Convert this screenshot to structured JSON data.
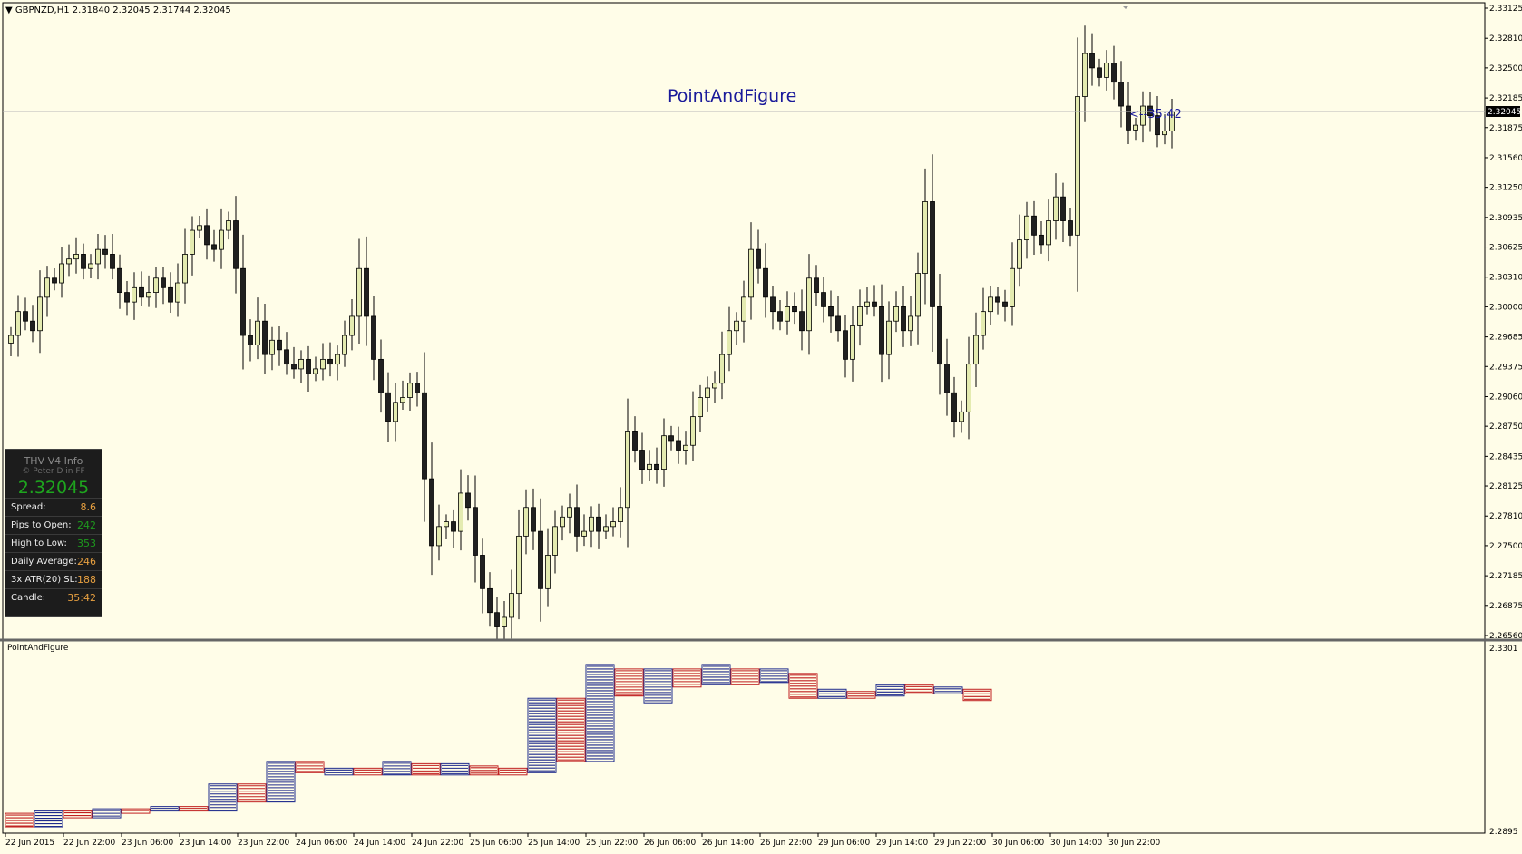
{
  "header": {
    "symbol_info": "▼ GBPNZD,H1  2.31840 2.32045 2.31744 2.32045"
  },
  "main": {
    "indicator_label": "PointAndFigure",
    "timer_label": "<--35:42",
    "current_price": "2.32045"
  },
  "info_panel": {
    "title": "THV  V4  Info",
    "subtitle": "© Peter D in FF",
    "price": "2.32045",
    "rows": [
      {
        "label": "Spread:",
        "value": "8.6",
        "color": "#e8a040"
      },
      {
        "label": "Pips to Open:",
        "value": "242",
        "color": "#1e9a1e"
      },
      {
        "label": "High to Low:",
        "value": "353",
        "color": "#1e9a1e"
      },
      {
        "label": "Daily Average:",
        "value": "246",
        "color": "#e8a040"
      },
      {
        "label": "3x ATR(20) SL:",
        "value": "188",
        "color": "#e8a040"
      },
      {
        "label": "Candle:",
        "value": "35:42",
        "color": "#e8a040"
      }
    ]
  },
  "subwindow": {
    "title": "PointAndFigure"
  },
  "colors": {
    "bull_candle": "#E4EBB0",
    "bear_candle": "#202020",
    "pf_x_color": "#1E2A8C",
    "pf_o_color": "#C02020",
    "background": "#FFFDE8"
  },
  "chart_data": [
    {
      "type": "candlestick",
      "title": "GBPNZD,H1",
      "y_axis_ticks": [
        "2.33125",
        "2.32810",
        "2.32500",
        "2.32185",
        "2.31875",
        "2.31560",
        "2.31250",
        "2.30935",
        "2.30625",
        "2.30310",
        "2.30000",
        "2.29685",
        "2.29375",
        "2.29060",
        "2.28750",
        "2.28435",
        "2.28125",
        "2.27810",
        "2.27500",
        "2.27185",
        "2.26875",
        "2.26560"
      ],
      "ylim": [
        2.2656,
        2.33125
      ],
      "x_axis_ticks": [
        "22 Jun 2015",
        "22 Jun 22:00",
        "23 Jun 06:00",
        "23 Jun 14:00",
        "23 Jun 22:00",
        "24 Jun 06:00",
        "24 Jun 14:00",
        "24 Jun 22:00",
        "25 Jun 06:00",
        "25 Jun 14:00",
        "25 Jun 22:00",
        "26 Jun 06:00",
        "26 Jun 14:00",
        "26 Jun 22:00",
        "29 Jun 06:00",
        "29 Jun 14:00",
        "29 Jun 22:00",
        "30 Jun 06:00",
        "30 Jun 14:00",
        "30 Jun 22:00"
      ],
      "close_values": [
        2.297,
        2.2995,
        2.2985,
        2.2975,
        2.301,
        2.303,
        2.3025,
        2.3045,
        2.305,
        2.3055,
        2.304,
        2.3045,
        2.306,
        2.3055,
        2.304,
        2.3015,
        2.3005,
        2.302,
        2.301,
        2.3015,
        2.303,
        2.302,
        2.3005,
        2.3025,
        2.3055,
        2.308,
        2.3085,
        2.3065,
        2.306,
        2.308,
        2.309,
        2.304,
        2.297,
        2.296,
        2.2985,
        2.295,
        2.2965,
        2.2955,
        2.294,
        2.2935,
        2.2945,
        2.293,
        2.2935,
        2.2945,
        2.294,
        2.295,
        2.297,
        2.299,
        2.304,
        2.299,
        2.2945,
        2.291,
        2.288,
        2.29,
        2.2905,
        2.292,
        2.291,
        2.282,
        2.275,
        2.277,
        2.2775,
        2.2765,
        2.2805,
        2.279,
        2.274,
        2.2705,
        2.268,
        2.2665,
        2.2675,
        2.27,
        2.276,
        2.279,
        2.2765,
        2.2705,
        2.274,
        2.277,
        2.278,
        2.279,
        2.276,
        2.2765,
        2.278,
        2.2765,
        2.277,
        2.2775,
        2.279,
        2.287,
        2.285,
        2.283,
        2.2835,
        2.283,
        2.2865,
        2.286,
        2.285,
        2.2855,
        2.2885,
        2.2905,
        2.2915,
        2.292,
        2.295,
        2.2975,
        2.2985,
        2.301,
        2.306,
        2.304,
        2.301,
        2.2995,
        2.2985,
        2.3,
        2.2995,
        2.2975,
        2.303,
        2.3015,
        2.3,
        2.299,
        2.2975,
        2.2945,
        2.298,
        2.3,
        2.3005,
        2.3,
        2.295,
        2.2985,
        2.3,
        2.2975,
        2.299,
        2.3035,
        2.311,
        2.3,
        2.294,
        2.291,
        2.288,
        2.289,
        2.294,
        2.297,
        2.2995,
        2.301,
        2.3005,
        2.3,
        2.304,
        2.307,
        2.3095,
        2.3075,
        2.3065,
        2.309,
        2.3115,
        2.309,
        2.3075,
        2.322,
        2.3265,
        2.325,
        2.324,
        2.3255,
        2.3235,
        2.321,
        2.3185,
        2.319,
        2.321,
        2.32,
        2.318,
        2.3184,
        2.32045
      ],
      "last_price": 2.32045
    },
    {
      "type": "point-and-figure",
      "title": "PointAndFigure",
      "y_axis_ticks": [
        "2.3301",
        "2.2895"
      ],
      "ylim": [
        2.2895,
        2.3301
      ],
      "columns": [
        {
          "kind": "O",
          "high": 2.2935,
          "low": 2.2905
        },
        {
          "kind": "X",
          "high": 2.294,
          "low": 2.2905
        },
        {
          "kind": "O",
          "high": 2.294,
          "low": 2.2925
        },
        {
          "kind": "X",
          "high": 2.2945,
          "low": 2.2925
        },
        {
          "kind": "O",
          "high": 2.2945,
          "low": 2.2935
        },
        {
          "kind": "X",
          "high": 2.295,
          "low": 2.294
        },
        {
          "kind": "O",
          "high": 2.295,
          "low": 2.294
        },
        {
          "kind": "X",
          "high": 2.3,
          "low": 2.294
        },
        {
          "kind": "O",
          "high": 2.3,
          "low": 2.296
        },
        {
          "kind": "X",
          "high": 2.305,
          "low": 2.296
        },
        {
          "kind": "O",
          "high": 2.305,
          "low": 2.3025
        },
        {
          "kind": "X",
          "high": 2.3035,
          "low": 2.302
        },
        {
          "kind": "O",
          "high": 2.3035,
          "low": 2.302
        },
        {
          "kind": "X",
          "high": 2.305,
          "low": 2.302
        },
        {
          "kind": "O",
          "high": 2.3045,
          "low": 2.302
        },
        {
          "kind": "X",
          "high": 2.3045,
          "low": 2.302
        },
        {
          "kind": "O",
          "high": 2.304,
          "low": 2.302
        },
        {
          "kind": "O",
          "high": 2.3035,
          "low": 2.302
        },
        {
          "kind": "X",
          "high": 2.319,
          "low": 2.3025
        },
        {
          "kind": "O",
          "high": 2.319,
          "low": 2.305
        },
        {
          "kind": "X",
          "high": 2.3265,
          "low": 2.305
        },
        {
          "kind": "O",
          "high": 2.3255,
          "low": 2.3195
        },
        {
          "kind": "X",
          "high": 2.3255,
          "low": 2.318
        },
        {
          "kind": "O",
          "high": 2.3255,
          "low": 2.3215
        },
        {
          "kind": "X",
          "high": 2.3265,
          "low": 2.322
        },
        {
          "kind": "O",
          "high": 2.3255,
          "low": 2.322
        },
        {
          "kind": "X",
          "high": 2.3255,
          "low": 2.3225
        },
        {
          "kind": "O",
          "high": 2.3245,
          "low": 2.319
        },
        {
          "kind": "X",
          "high": 2.321,
          "low": 2.319
        },
        {
          "kind": "O",
          "high": 2.3205,
          "low": 2.319
        },
        {
          "kind": "X",
          "high": 2.322,
          "low": 2.3195
        },
        {
          "kind": "O",
          "high": 2.322,
          "low": 2.32
        },
        {
          "kind": "X",
          "high": 2.3215,
          "low": 2.32
        },
        {
          "kind": "O",
          "high": 2.321,
          "low": 2.3185
        }
      ]
    }
  ]
}
